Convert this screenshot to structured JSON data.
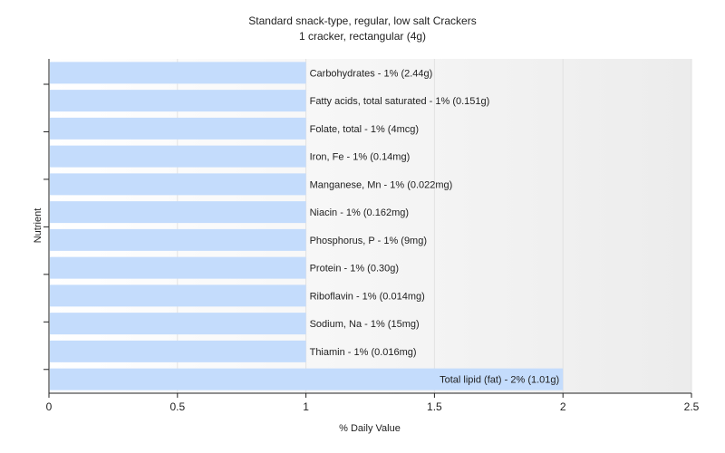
{
  "chart_data": {
    "type": "bar",
    "orientation": "horizontal",
    "title": "Standard snack-type, regular, low salt Crackers",
    "subtitle": "1 cracker, rectangular (4g)",
    "xlabel": "% Daily Value",
    "ylabel": "Nutrient",
    "xlim": [
      0,
      2.5
    ],
    "xticks": [
      "0",
      "0.5",
      "1",
      "1.5",
      "2",
      "2.5"
    ],
    "grid": true,
    "bar_color": "#c4dcfc",
    "bars": [
      {
        "value": 1,
        "label": "Carbohydrates - 1% (2.44g)"
      },
      {
        "value": 1,
        "label": "Fatty acids, total saturated - 1% (0.151g)"
      },
      {
        "value": 1,
        "label": "Folate, total - 1% (4mcg)"
      },
      {
        "value": 1,
        "label": "Iron, Fe - 1% (0.14mg)"
      },
      {
        "value": 1,
        "label": "Manganese, Mn - 1% (0.022mg)"
      },
      {
        "value": 1,
        "label": "Niacin - 1% (0.162mg)"
      },
      {
        "value": 1,
        "label": "Phosphorus, P - 1% (9mg)"
      },
      {
        "value": 1,
        "label": "Protein - 1% (0.30g)"
      },
      {
        "value": 1,
        "label": "Riboflavin - 1% (0.014mg)"
      },
      {
        "value": 1,
        "label": "Sodium, Na - 1% (15mg)"
      },
      {
        "value": 1,
        "label": "Thiamin - 1% (0.016mg)"
      },
      {
        "value": 2,
        "label": "Total lipid (fat) - 2% (1.01g)"
      }
    ]
  }
}
